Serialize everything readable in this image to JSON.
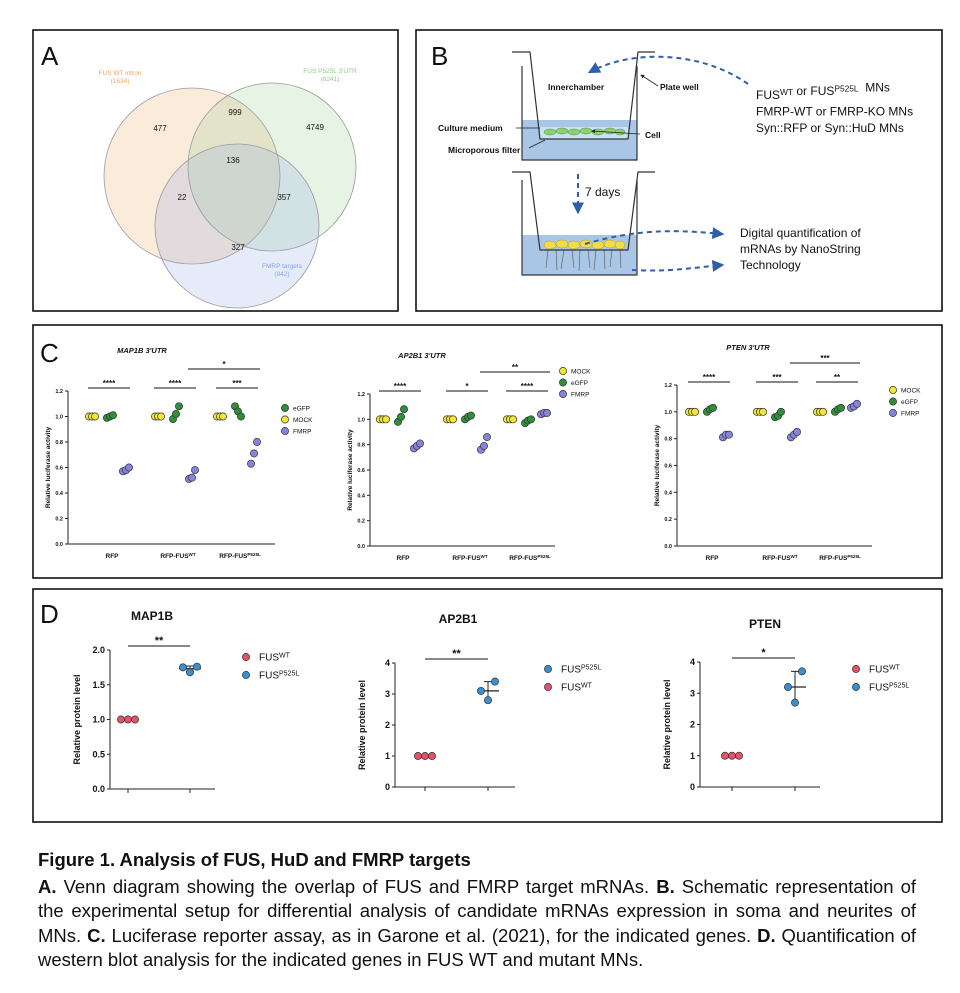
{
  "panels": {
    "A": {
      "letter": "A",
      "sets": [
        {
          "name": "FUS WT intron",
          "count": "(1634)",
          "color": "#eda45c"
        },
        {
          "name": "FUS P525L 3'UTR",
          "count": "(6241)",
          "color": "#8fca8a"
        },
        {
          "name": "FMRP targets",
          "count": "(842)",
          "color": "#8aa4e2"
        }
      ],
      "regions": {
        "a": "477",
        "ab": "999",
        "b": "4749",
        "abc": "136",
        "ac": "22",
        "bc": "357",
        "c": "327"
      }
    },
    "B": {
      "letter": "B",
      "labels": {
        "inner": "Innerchamber",
        "well": "Plate well",
        "medium": "Culture medium",
        "cell": "Cell",
        "filter": "Microporous filter",
        "days": "7 days"
      },
      "conditions": [
        [
          {
            "text": "FUS"
          },
          {
            "sup": "WT"
          },
          {
            "text": " or FUS"
          },
          {
            "sup": "P525L"
          },
          {
            "text": "  MNs"
          }
        ],
        [
          {
            "text": "FMRP-WT or FMRP-KO MNs"
          }
        ],
        [
          {
            "text": "Syn::RFP or Syn::HuD MNs"
          }
        ]
      ],
      "readout": [
        "Digital quantification of",
        "mRNAs by NanoString",
        "Technology"
      ]
    },
    "C": {
      "letter": "C",
      "charts": [
        {
          "type": "strip",
          "title": "MAP1B 3'UTR",
          "ylabel": "Relative luciferase activity",
          "ylim": [
            0,
            1.2
          ],
          "yticks": [
            {
              "value": 0,
              "label": "0.0"
            },
            0.2,
            0.4,
            0.6,
            0.8,
            {
              "value": 1,
              "label": "1.0"
            },
            1.2
          ],
          "categories": [
            {
              "text": "RFP"
            },
            {
              "text": "RFP-FUS",
              "sup": "WT"
            },
            {
              "text": "RFP-FUS",
              "sup": "P525L"
            }
          ],
          "series": [
            {
              "name": "MOCK",
              "color": "#f2e63c",
              "values": [
                [
                  1,
                  1,
                  1
                ],
                [
                  1,
                  1,
                  1
                ],
                [
                  1,
                  1,
                  1
                ]
              ]
            },
            {
              "name": "eGFP",
              "color": "#2f8f3a",
              "values": [
                [
                  0.99,
                  1.0,
                  1.01
                ],
                [
                  0.98,
                  1.02,
                  1.08
                ],
                [
                  1.08,
                  1.04,
                  1.0
                ]
              ]
            },
            {
              "name": "FMRP",
              "color": "#8585e0",
              "values": [
                [
                  0.57,
                  0.58,
                  0.6
                ],
                [
                  0.51,
                  0.52,
                  0.58
                ],
                [
                  0.63,
                  0.71,
                  0.8
                ]
              ]
            }
          ],
          "legend": [
            1,
            0,
            2
          ],
          "significance": [
            {
              "span": [
                0,
                0
              ],
              "label": "****"
            },
            {
              "span": [
                1,
                1
              ],
              "label": "****"
            },
            {
              "span": [
                2,
                2
              ],
              "label": "***"
            },
            {
              "span": [
                1,
                2
              ],
              "label": "*"
            }
          ]
        },
        {
          "type": "strip",
          "title": "AP2B1 3'UTR",
          "ylabel": "Relative luciferase activity",
          "ylim": [
            0,
            1.2
          ],
          "yticks": [
            {
              "value": 0,
              "label": "0.0"
            },
            0.2,
            0.4,
            0.6,
            0.8,
            {
              "value": 1,
              "label": "1.0"
            },
            1.2
          ],
          "categories": [
            {
              "text": "RFP"
            },
            {
              "text": "RFP-FUS",
              "sup": "WT"
            },
            {
              "text": "RFP-FUS",
              "sup": "P525L"
            }
          ],
          "series": [
            {
              "name": "MOCK",
              "color": "#f2e63c",
              "values": [
                [
                  1,
                  1,
                  1
                ],
                [
                  1,
                  1,
                  1
                ],
                [
                  1,
                  1,
                  1
                ]
              ]
            },
            {
              "name": "eGFP",
              "color": "#2f8f3a",
              "values": [
                [
                  0.98,
                  1.02,
                  1.08
                ],
                [
                  1.0,
                  1.02,
                  1.03
                ],
                [
                  0.97,
                  0.99,
                  1.0
                ]
              ]
            },
            {
              "name": "FMRP",
              "color": "#8585e0",
              "values": [
                [
                  0.77,
                  0.79,
                  0.81
                ],
                [
                  0.76,
                  0.79,
                  0.86
                ],
                [
                  1.04,
                  1.05,
                  1.05
                ]
              ]
            }
          ],
          "legend": [
            0,
            1,
            2
          ],
          "significance": [
            {
              "span": [
                0,
                0
              ],
              "label": "****"
            },
            {
              "span": [
                1,
                1
              ],
              "label": "*"
            },
            {
              "span": [
                2,
                2
              ],
              "label": "****"
            },
            {
              "span": [
                1,
                2
              ],
              "label": "**"
            }
          ]
        },
        {
          "type": "strip",
          "title": "PTEN 3'UTR",
          "ylabel": "Relative luciferase activity",
          "ylim": [
            0,
            1.2
          ],
          "yticks": [
            {
              "value": 0,
              "label": "0.0"
            },
            0.2,
            0.4,
            0.6,
            0.8,
            {
              "value": 1,
              "label": "1.0"
            },
            1.2
          ],
          "categories": [
            {
              "text": "RFP"
            },
            {
              "text": "RFP-FUS",
              "sup": "WT"
            },
            {
              "text": "RFP-FUS",
              "sup": "P525L"
            }
          ],
          "series": [
            {
              "name": "MOCK",
              "color": "#f2e63c",
              "values": [
                [
                  1,
                  1,
                  1
                ],
                [
                  1,
                  1,
                  1
                ],
                [
                  1,
                  1,
                  1
                ]
              ]
            },
            {
              "name": "eGFP",
              "color": "#2f8f3a",
              "values": [
                [
                  1.0,
                  1.02,
                  1.03
                ],
                [
                  0.96,
                  0.97,
                  1.0
                ],
                [
                  1.0,
                  1.02,
                  1.03
                ]
              ]
            },
            {
              "name": "FMRP",
              "color": "#8585e0",
              "values": [
                [
                  0.81,
                  0.83,
                  0.83
                ],
                [
                  0.81,
                  0.83,
                  0.85
                ],
                [
                  1.03,
                  1.04,
                  1.06
                ]
              ]
            }
          ],
          "legend": [
            0,
            1,
            2
          ],
          "significance": [
            {
              "span": [
                0,
                0
              ],
              "label": "****"
            },
            {
              "span": [
                1,
                1
              ],
              "label": "***"
            },
            {
              "span": [
                2,
                2
              ],
              "label": "**"
            },
            {
              "span": [
                1,
                2
              ],
              "label": "***"
            }
          ]
        }
      ]
    },
    "D": {
      "letter": "D",
      "charts": [
        {
          "type": "strip",
          "title": "MAP1B",
          "ylabel": "Relative protein level",
          "ylim": [
            0,
            2
          ],
          "yticks": [
            {
              "value": 0,
              "label": "0.0"
            },
            0.5,
            {
              "value": 1,
              "label": "1.0"
            },
            1.5,
            {
              "value": 2,
              "label": "2.0"
            }
          ],
          "series": [
            {
              "name": {
                "text": "FUS",
                "sup": "WT"
              },
              "color": "#e8506a",
              "values": [
                1,
                1,
                1
              ]
            },
            {
              "name": {
                "text": "FUS",
                "sup": "P525L"
              },
              "color": "#3a8fd0",
              "values": [
                1.75,
                1.68,
                1.76
              ],
              "mean": 1.73,
              "sd": 0.04
            }
          ],
          "legend": [
            0,
            1
          ],
          "significance": [
            {
              "span": [
                0,
                1
              ],
              "label": "**"
            }
          ]
        },
        {
          "type": "strip",
          "title": "AP2B1",
          "ylabel": "Relative protein level",
          "ylim": [
            0,
            4
          ],
          "yticks": [
            0,
            1,
            2,
            3,
            4
          ],
          "series": [
            {
              "name": {
                "text": "FUS",
                "sup": "WT"
              },
              "color": "#e8506a",
              "values": [
                1,
                1,
                1
              ]
            },
            {
              "name": {
                "text": "FUS",
                "sup": "P525L"
              },
              "color": "#3a8fd0",
              "values": [
                3.1,
                2.8,
                3.4
              ],
              "mean": 3.1,
              "sd": 0.3
            }
          ],
          "legend": [
            1,
            0
          ],
          "significance": [
            {
              "span": [
                0,
                1
              ],
              "label": "**"
            }
          ]
        },
        {
          "type": "strip",
          "title": "PTEN",
          "ylabel": "Relative protein level",
          "ylim": [
            0,
            4
          ],
          "yticks": [
            0,
            1,
            2,
            3,
            4
          ],
          "series": [
            {
              "name": {
                "text": "FUS",
                "sup": "WT"
              },
              "color": "#e8506a",
              "values": [
                1,
                1,
                1
              ]
            },
            {
              "name": {
                "text": "FUS",
                "sup": "P525L"
              },
              "color": "#3a8fd0",
              "values": [
                3.2,
                2.7,
                3.7
              ],
              "mean": 3.2,
              "sd": 0.5
            }
          ],
          "legend": [
            0,
            1
          ],
          "significance": [
            {
              "span": [
                0,
                1
              ],
              "label": "*"
            }
          ]
        }
      ]
    }
  },
  "caption": {
    "title": "Figure 1. Analysis of FUS, HuD and FMRP targets",
    "parts": [
      {
        "label": "A.",
        "text": "Venn diagram showing the overlap of FUS and FMRP target mRNAs."
      },
      {
        "label": "B.",
        "text": "Schematic representation of the experimental setup for differential analysis of candidate mRNAs expression in soma and neurites of MNs."
      },
      {
        "label": "C.",
        "text": "Luciferase reporter assay, as in Garone et al. (2021), for the indicated genes."
      },
      {
        "label": "D.",
        "text": "Quantification of western blot analysis for the indicated genes in FUS WT and mutant MNs."
      }
    ]
  }
}
